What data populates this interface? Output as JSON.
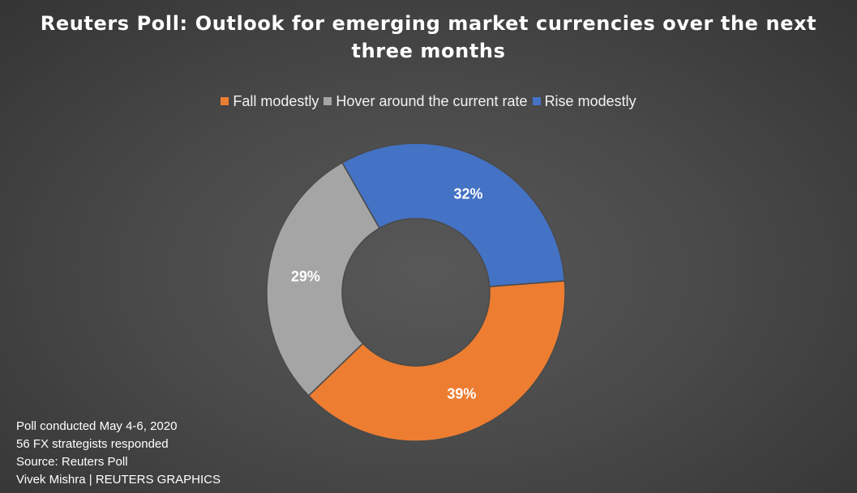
{
  "chart_data": {
    "type": "pie",
    "style": "donut",
    "title": "Reuters Poll: Outlook for emerging market currencies over the next three months",
    "categories": [
      "Fall modestly",
      "Hover around the current rate",
      "Rise modestly"
    ],
    "values": [
      39,
      29,
      32
    ],
    "value_labels": [
      "39%",
      "29%",
      "32%"
    ],
    "colors": [
      "#ed7d31",
      "#a5a5a5",
      "#4472c4"
    ],
    "legend_position": "top",
    "notes": [
      "Poll conducted May 4-6, 2020",
      "56 FX strategists responded",
      "Source: Reuters Poll",
      "Vivek Mishra | REUTERS GRAPHICS"
    ]
  }
}
